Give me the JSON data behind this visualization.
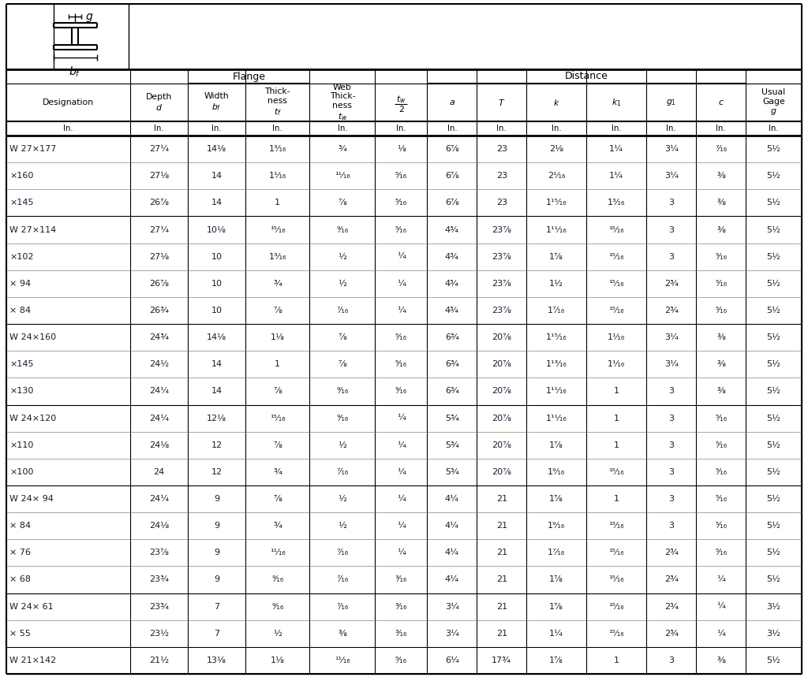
{
  "bg_color": "#ffffff",
  "text_color": "#1a1a2e",
  "rows": [
    [
      "W 27×177",
      "27¼",
      "14⅛",
      "1³⁄₁₆",
      "¾",
      "⅛",
      "6⅞",
      "23",
      "2⅛",
      "1¼",
      "3¼",
      "⁷⁄₁₆",
      "5½"
    ],
    [
      "×160",
      "27⅛",
      "14",
      "1¹⁄₁₆",
      "¹¹⁄₁₆",
      "⁵⁄₁₆",
      "6⅞",
      "23",
      "2¹⁄₁₆",
      "1¼",
      "3¼",
      "⅜",
      "5½"
    ],
    [
      "×145",
      "26⅞",
      "14",
      "1",
      "⅞",
      "⁵⁄₁₆",
      "6⅞",
      "23",
      "1¹⁵⁄₁₆",
      "1³⁄₁₆",
      "3",
      "⅜",
      "5½"
    ],
    [
      "W 27×114",
      "27¼",
      "10⅛",
      "¹⁵⁄₁₆",
      "⁹⁄₁₆",
      "⁵⁄₁₆",
      "4¾",
      "23⅞",
      "1¹¹⁄₁₆",
      "¹⁵⁄₁₆",
      "3",
      "⅜",
      "5½"
    ],
    [
      "×102",
      "27⅛",
      "10",
      "1³⁄₁₆",
      "½",
      "¼",
      "4¾",
      "23⅞",
      "1⅞",
      "¹⁵⁄₁₆",
      "3",
      "⁵⁄₁₆",
      "5½"
    ],
    [
      "× 94",
      "26⅞",
      "10",
      "¾",
      "½",
      "¼",
      "4¾",
      "23⅞",
      "1½",
      "¹⁵⁄₁₆",
      "2¾",
      "⁵⁄₁₆",
      "5½"
    ],
    [
      "× 84",
      "26¾",
      "10",
      "⅞",
      "⁷⁄₁₆",
      "¼",
      "4¾",
      "23⅞",
      "1⁷⁄₁₆",
      "¹⁵⁄₁₆",
      "2¾",
      "⁵⁄₁₆",
      "5½"
    ],
    [
      "W 24×160",
      "24¾",
      "14⅛",
      "1⅛",
      "⅞",
      "⁵⁄₁₆",
      "6¾",
      "20⅞",
      "1¹⁵⁄₁₆",
      "1¹⁄₁₆",
      "3¼",
      "⅜",
      "5½"
    ],
    [
      "×145",
      "24½",
      "14",
      "1",
      "⅞",
      "⁵⁄₁₆",
      "6¾",
      "20⅞",
      "1¹³⁄₁₆",
      "1¹⁄₁₆",
      "3¼",
      "⅜",
      "5½"
    ],
    [
      "×130",
      "24¼",
      "14",
      "⅞",
      "⁹⁄₁₆",
      "⁹⁄₁₆",
      "6¾",
      "20⅞",
      "1¹¹⁄₁₆",
      "1",
      "3",
      "⅜",
      "5½"
    ],
    [
      "W 24×120",
      "24¼",
      "12⅛",
      "¹⁵⁄₁₆",
      "⁹⁄₁₆",
      "¼",
      "5¾",
      "20⅞",
      "1¹¹⁄₁₆",
      "1",
      "3",
      "⁵⁄₁₆",
      "5½"
    ],
    [
      "×110",
      "24⅛",
      "12",
      "⅞",
      "½",
      "¼",
      "5¾",
      "20⅞",
      "1⅞",
      "1",
      "3",
      "⁵⁄₁₆",
      "5½"
    ],
    [
      "×100",
      "24",
      "12",
      "¾",
      "⁷⁄₁₆",
      "¼",
      "5¾",
      "20⅞",
      "1⁹⁄₁₆",
      "¹⁵⁄₁₆",
      "3",
      "⁵⁄₁₆",
      "5½"
    ],
    [
      "W 24× 94",
      "24¼",
      "9",
      "⅞",
      "½",
      "¼",
      "4¼",
      "21",
      "1⅞",
      "1",
      "3",
      "⁵⁄₁₆",
      "5½"
    ],
    [
      "× 84",
      "24⅛",
      "9",
      "¾",
      "½",
      "¼",
      "4¼",
      "21",
      "1⁹⁄₁₆",
      "¹⁵⁄₁₆",
      "3",
      "⁵⁄₁₆",
      "5½"
    ],
    [
      "× 76",
      "23⅞",
      "9",
      "¹¹⁄₁₆",
      "⁷⁄₁₆",
      "¼",
      "4¼",
      "21",
      "1⁷⁄₁₆",
      "¹⁵⁄₁₆",
      "2¾",
      "⁵⁄₁₆",
      "5½"
    ],
    [
      "× 68",
      "23¾",
      "9",
      "⁹⁄₁₆",
      "⁷⁄₁₆",
      "³⁄₁₆",
      "4¼",
      "21",
      "1⅞",
      "¹⁵⁄₁₆",
      "2¾",
      "¼",
      "5½"
    ],
    [
      "W 24× 61",
      "23¾",
      "7",
      "⁹⁄₁₆",
      "⁷⁄₁₆",
      "³⁄₁₆",
      "3¼",
      "21",
      "1⅞",
      "¹⁵⁄₁₆",
      "2¾",
      "¼",
      "3½"
    ],
    [
      "× 55",
      "23½",
      "7",
      "½",
      "⅜",
      "³⁄₁₆",
      "3¼",
      "21",
      "1¼",
      "¹⁵⁄₁₆",
      "2¾",
      "¼",
      "3½"
    ],
    [
      "W 21×142",
      "21½",
      "13⅛",
      "1⅛",
      "¹¹⁄₁₆",
      "⁵⁄₁₆",
      "6¼",
      "17¾",
      "1⅞",
      "1",
      "3",
      "⅜",
      "5½"
    ]
  ],
  "group_rows": [
    3,
    7,
    10,
    13,
    17,
    19
  ],
  "col_widths_rel": [
    1.55,
    0.72,
    0.72,
    0.8,
    0.82,
    0.65,
    0.62,
    0.62,
    0.75,
    0.75,
    0.62,
    0.62,
    0.7
  ],
  "font_size": 8.0,
  "header_font_size": 7.8
}
